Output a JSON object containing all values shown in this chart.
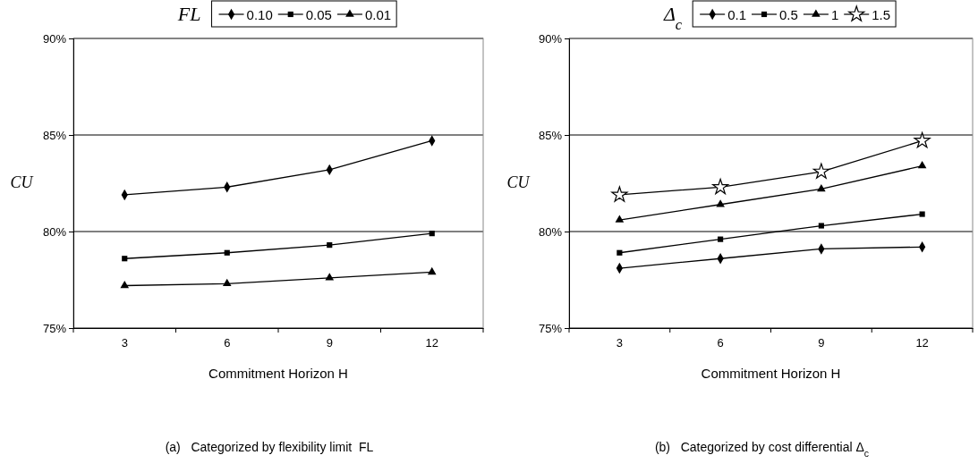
{
  "chart_data": [
    {
      "type": "line",
      "xlabel": "Commitment Horizon H",
      "ylabel": "CU",
      "legend_title": "FL",
      "legend": "top",
      "grid": "y",
      "categories": [
        "3",
        "6",
        "9",
        "12"
      ],
      "ylim": [
        75,
        90
      ],
      "yticks": [
        {
          "value": 75,
          "label": "75%"
        },
        {
          "value": 80,
          "label": "80%"
        },
        {
          "value": 85,
          "label": "85%"
        },
        {
          "value": 90,
          "label": "90%"
        }
      ],
      "series": [
        {
          "name": "0.10",
          "color": "#000000",
          "marker": "diamond",
          "values": [
            81.9,
            82.3,
            83.2,
            84.7
          ]
        },
        {
          "name": "0.05",
          "color": "#000000",
          "marker": "square",
          "values": [
            78.6,
            78.9,
            79.3,
            79.9
          ]
        },
        {
          "name": "0.01",
          "color": "#000000",
          "marker": "triangle",
          "values": [
            77.2,
            77.3,
            77.6,
            77.9
          ]
        }
      ],
      "annotations": [
        "(a)   Categorized by flexibility limit  FL"
      ]
    },
    {
      "type": "line",
      "xlabel": "Commitment Horizon H",
      "ylabel": "CU",
      "legend_title": "Δ$_{c}$",
      "legend": "top",
      "grid": "y",
      "categories": [
        "3",
        "6",
        "9",
        "12"
      ],
      "ylim": [
        75,
        90
      ],
      "yticks": [
        {
          "value": 75,
          "label": "75%"
        },
        {
          "value": 80,
          "label": "80%"
        },
        {
          "value": 85,
          "label": "85%"
        },
        {
          "value": 90,
          "label": "90%"
        }
      ],
      "series": [
        {
          "name": "0.1",
          "color": "#000000",
          "marker": "diamond",
          "values": [
            78.1,
            78.6,
            79.1,
            79.2
          ]
        },
        {
          "name": "0.5",
          "color": "#000000",
          "marker": "square",
          "values": [
            78.9,
            79.6,
            80.3,
            80.9
          ]
        },
        {
          "name": "1",
          "color": "#000000",
          "marker": "triangle",
          "values": [
            80.6,
            81.4,
            82.2,
            83.4
          ]
        },
        {
          "name": "1.5",
          "color": "#000000",
          "marker": "star",
          "values": [
            81.9,
            82.3,
            83.1,
            84.7
          ]
        }
      ],
      "annotations": [
        "(b)   Categorized by cost differential Δ$_{c}$"
      ]
    }
  ]
}
